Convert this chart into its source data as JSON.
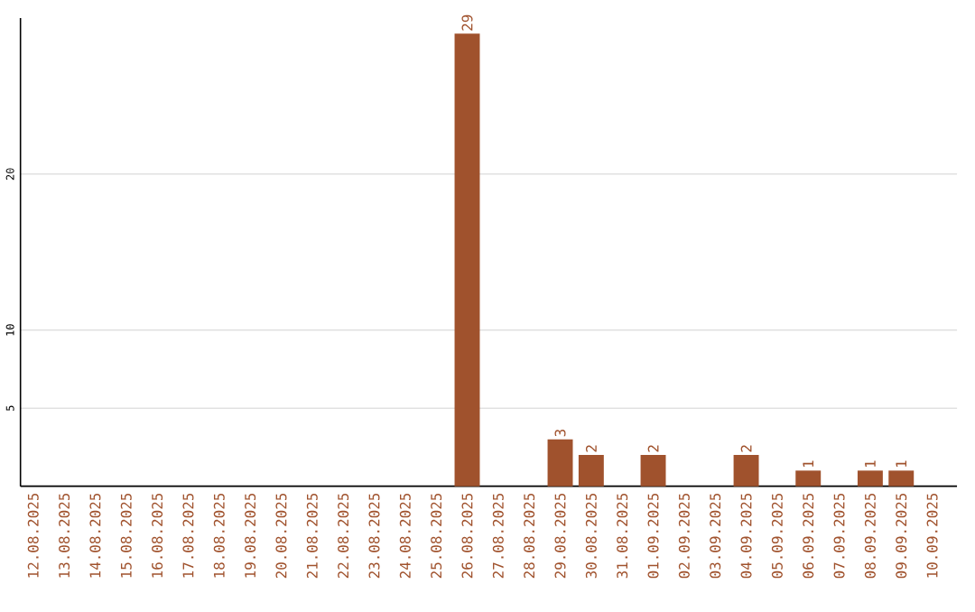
{
  "chart_data": {
    "type": "bar",
    "categories": [
      "12.08.2025",
      "13.08.2025",
      "14.08.2025",
      "15.08.2025",
      "16.08.2025",
      "17.08.2025",
      "18.08.2025",
      "19.08.2025",
      "20.08.2025",
      "21.08.2025",
      "22.08.2025",
      "23.08.2025",
      "24.08.2025",
      "25.08.2025",
      "26.08.2025",
      "27.08.2025",
      "28.08.2025",
      "29.08.2025",
      "30.08.2025",
      "31.08.2025",
      "01.09.2025",
      "02.09.2025",
      "03.09.2025",
      "04.09.2025",
      "05.09.2025",
      "06.09.2025",
      "07.09.2025",
      "08.09.2025",
      "09.09.2025",
      "10.09.2025"
    ],
    "values": [
      0,
      0,
      0,
      0,
      0,
      0,
      0,
      0,
      0,
      0,
      0,
      0,
      0,
      0,
      29,
      0,
      0,
      3,
      2,
      0,
      2,
      0,
      0,
      2,
      0,
      1,
      0,
      1,
      1,
      0
    ],
    "value_labels": [
      null,
      null,
      null,
      null,
      null,
      null,
      null,
      null,
      null,
      null,
      null,
      null,
      null,
      null,
      "29",
      null,
      null,
      "3",
      "2",
      null,
      "2",
      null,
      null,
      "2",
      null,
      "1",
      null,
      "1",
      "1",
      null
    ],
    "color": "#a0522d",
    "ylim": [
      0,
      30
    ],
    "yticks": [
      5,
      10,
      20
    ],
    "grid": "y"
  }
}
